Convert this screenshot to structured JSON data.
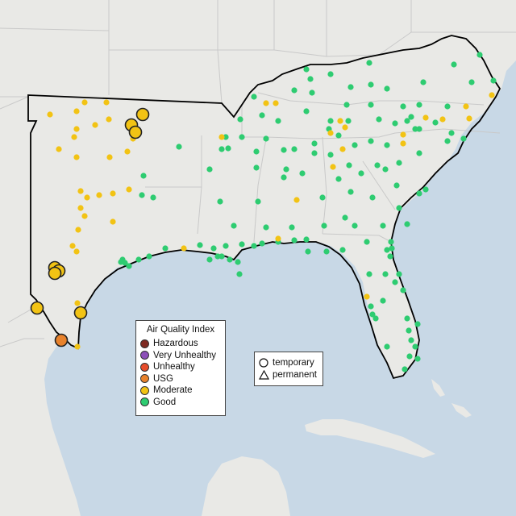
{
  "legend": {
    "title": "Air Quality Index",
    "categories": [
      {
        "label": "Hazardous",
        "color": "#7e2a22"
      },
      {
        "label": "Very Unhealthy",
        "color": "#8c4fb8"
      },
      {
        "label": "Unhealthy",
        "color": "#e74c2b"
      },
      {
        "label": "USG",
        "color": "#e8822c"
      },
      {
        "label": "Moderate",
        "color": "#f2c314"
      },
      {
        "label": "Good",
        "color": "#2ecc71"
      }
    ]
  },
  "monitor_legend": {
    "temporary_label": "temporary",
    "permanent_label": "permanent"
  },
  "colors": {
    "water": "#c8d8e6",
    "land": "#e9e9e6",
    "state_border": "#c9c9c9",
    "region_outline": "#000000"
  },
  "sensor_categories": {
    "good_count_note": "",
    "moderate_large": "temporary",
    "usg_large": "temporary"
  }
}
